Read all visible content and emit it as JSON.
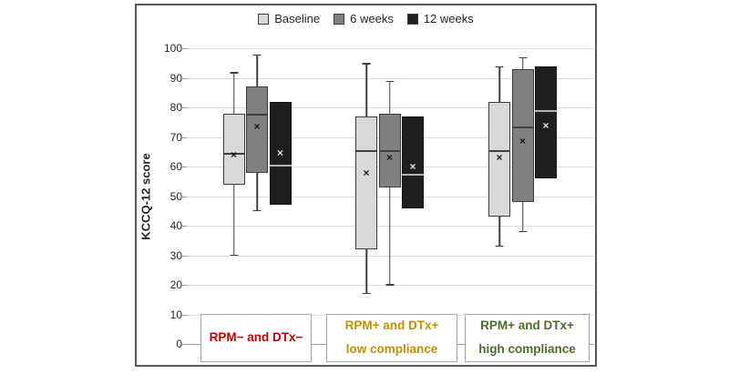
{
  "figure": {
    "ylabel": "KCCQ-12 score"
  },
  "legend": {
    "items": [
      {
        "label": "Baseline",
        "color": "#d9d9d9"
      },
      {
        "label": "6 weeks",
        "color": "#808080"
      },
      {
        "label": "12 weeks",
        "color": "#1f1f1f"
      }
    ]
  },
  "chart_data": {
    "type": "boxplot",
    "title": "",
    "xlabel": "",
    "ylabel": "KCCQ-12 score",
    "ylim": [
      0,
      100
    ],
    "yticks": [
      0,
      10,
      20,
      30,
      40,
      50,
      60,
      70,
      80,
      90,
      100
    ],
    "grid": true,
    "legend_position": "top-center",
    "series_names": [
      "Baseline",
      "6 weeks",
      "12 weeks"
    ],
    "series_colors": [
      "#d9d9d9",
      "#808080",
      "#1f1f1f"
    ],
    "groups": [
      {
        "label_lines": [
          "RPM− and DTx−"
        ],
        "label_color": "#c00000",
        "series": [
          {
            "name": "Baseline",
            "min": 30,
            "q1": 54,
            "median": 64.5,
            "mean": 64,
            "q3": 78,
            "max": 92
          },
          {
            "name": "6 weeks",
            "min": 45,
            "q1": 58,
            "median": 78,
            "mean": 73.5,
            "q3": 87,
            "max": 98
          },
          {
            "name": "12 weeks",
            "q1": 47,
            "median": 60.5,
            "mean": 64.5,
            "q3": 82
          }
        ]
      },
      {
        "label_lines": [
          "RPM+ and DTx+",
          "low compliance"
        ],
        "label_color": "#bf9000",
        "series": [
          {
            "name": "Baseline",
            "min": 17,
            "q1": 32,
            "median": 65.5,
            "mean": 58,
            "q3": 77,
            "max": 95
          },
          {
            "name": "6 weeks",
            "min": 20,
            "q1": 53,
            "median": 65.5,
            "mean": 63,
            "q3": 78,
            "max": 89
          },
          {
            "name": "12 weeks",
            "q1": 46,
            "median": 57.5,
            "mean": 60,
            "q3": 77
          }
        ]
      },
      {
        "label_lines": [
          "RPM+ and DTx+",
          "high compliance"
        ],
        "label_color": "#4a6e2a",
        "series": [
          {
            "name": "Baseline",
            "min": 33,
            "q1": 43,
            "median": 65.5,
            "mean": 63,
            "q3": 82,
            "max": 94
          },
          {
            "name": "6 weeks",
            "min": 38,
            "q1": 48,
            "median": 73.5,
            "mean": 68.5,
            "q3": 93,
            "max": 97
          },
          {
            "name": "12 weeks",
            "q1": 56,
            "median": 79,
            "mean": 74,
            "q3": 94
          }
        ]
      }
    ]
  }
}
